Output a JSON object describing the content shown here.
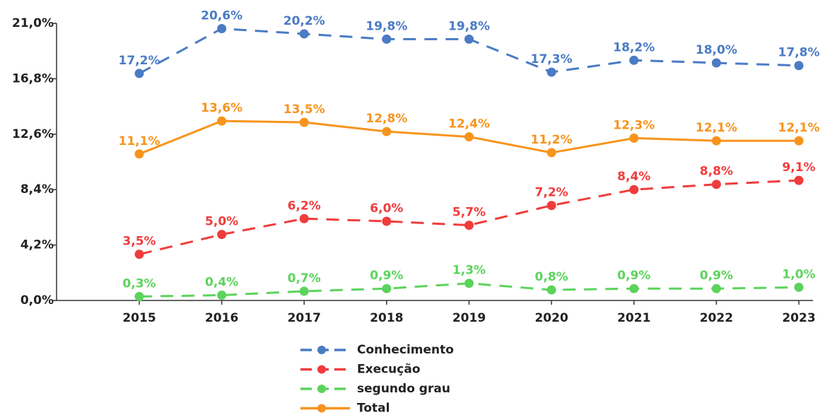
{
  "chart_data": {
    "type": "line",
    "categories": [
      "2015",
      "2016",
      "2017",
      "2018",
      "2019",
      "2020",
      "2021",
      "2022",
      "2023"
    ],
    "ylim": [
      0,
      21
    ],
    "yticks": [
      {
        "value": 0,
        "label": "0,0%"
      },
      {
        "value": 4.2,
        "label": "4,2%"
      },
      {
        "value": 8.4,
        "label": "8,4%"
      },
      {
        "value": 12.6,
        "label": "12,6%"
      },
      {
        "value": 16.8,
        "label": "16,8%"
      },
      {
        "value": 21,
        "label": "21,0%"
      }
    ],
    "legend": "bottom",
    "series": [
      {
        "name": "Conhecimento",
        "color": "#4a7bc4",
        "linestyle": "dashed",
        "values": [
          17.2,
          20.6,
          20.2,
          19.8,
          19.8,
          17.3,
          18.2,
          18.0,
          17.8
        ],
        "value_labels": [
          "17,2%",
          "20,6%",
          "20,2%",
          "19,8%",
          "19,8%",
          "17,3%",
          "18,2%",
          "18,0%",
          "17,8%"
        ]
      },
      {
        "name": "Execução",
        "color": "#f03c3c",
        "linestyle": "dashed",
        "values": [
          3.5,
          5.0,
          6.2,
          6.0,
          5.7,
          7.2,
          8.4,
          8.8,
          9.1
        ],
        "value_labels": [
          "3,5%",
          "5,0%",
          "6,2%",
          "6,0%",
          "5,7%",
          "7,2%",
          "8,4%",
          "8,8%",
          "9,1%"
        ]
      },
      {
        "name": "segundo grau",
        "color": "#5cd35c",
        "linestyle": "dashed",
        "values": [
          0.3,
          0.4,
          0.7,
          0.9,
          1.3,
          0.8,
          0.9,
          0.9,
          1.0
        ],
        "value_labels": [
          "0,3%",
          "0,4%",
          "0,7%",
          "0,9%",
          "1,3%",
          "0,8%",
          "0,9%",
          "0,9%",
          "1,0%"
        ]
      },
      {
        "name": "Total",
        "color": "#f7941d",
        "linestyle": "solid",
        "values": [
          11.1,
          13.6,
          13.5,
          12.8,
          12.4,
          11.2,
          12.3,
          12.1,
          12.1
        ],
        "value_labels": [
          "11,1%",
          "13,6%",
          "13,5%",
          "12,8%",
          "12,4%",
          "11,2%",
          "12,3%",
          "12,1%",
          "12,1%"
        ]
      }
    ]
  }
}
